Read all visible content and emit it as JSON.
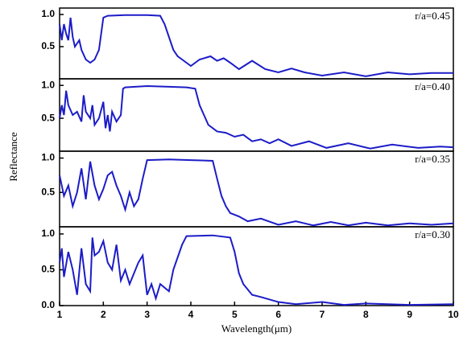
{
  "chart_data": [
    {
      "type": "line",
      "annotation": "r/a=0.45",
      "ylabel": "Reflectance",
      "xlim": [
        1,
        10
      ],
      "ylim": [
        0,
        1.1
      ],
      "yticks": [
        {
          "value": 0.5,
          "label": "0.5"
        },
        {
          "value": 1,
          "label": "1.0"
        }
      ],
      "x": [
        1,
        1.05,
        1.1,
        1.15,
        1.2,
        1.25,
        1.3,
        1.35,
        1.4,
        1.45,
        1.5,
        1.6,
        1.7,
        1.8,
        1.9,
        2.0,
        2.1,
        2.5,
        3.0,
        3.3,
        3.4,
        3.5,
        3.6,
        3.7,
        3.8,
        3.9,
        4.0,
        4.1,
        4.2,
        4.3,
        4.45,
        4.6,
        4.75,
        4.9,
        5.1,
        5.4,
        5.7,
        6.0,
        6.3,
        6.6,
        7.0,
        7.5,
        8.0,
        8.5,
        9.0,
        9.5,
        10
      ],
      "series": [
        {
          "color": "#1c1cc8",
          "values": [
            0.85,
            0.6,
            0.85,
            0.7,
            0.6,
            0.95,
            0.65,
            0.5,
            0.55,
            0.6,
            0.45,
            0.3,
            0.25,
            0.3,
            0.45,
            0.95,
            0.98,
            0.99,
            0.99,
            0.98,
            0.85,
            0.65,
            0.45,
            0.35,
            0.3,
            0.25,
            0.2,
            0.25,
            0.3,
            0.32,
            0.35,
            0.28,
            0.32,
            0.25,
            0.15,
            0.28,
            0.15,
            0.1,
            0.16,
            0.1,
            0.05,
            0.1,
            0.04,
            0.1,
            0.07,
            0.09,
            0.09
          ]
        }
      ]
    },
    {
      "type": "line",
      "annotation": "r/a=0.40",
      "xlim": [
        1,
        10
      ],
      "ylim": [
        0,
        1.1
      ],
      "yticks": [
        {
          "value": 0.5,
          "label": "0.5"
        },
        {
          "value": 1,
          "label": "1.0"
        }
      ],
      "x": [
        1,
        1.05,
        1.1,
        1.15,
        1.2,
        1.3,
        1.4,
        1.5,
        1.55,
        1.6,
        1.7,
        1.75,
        1.8,
        1.9,
        2.0,
        2.05,
        2.1,
        2.15,
        2.2,
        2.3,
        2.4,
        2.45,
        2.5,
        3.0,
        3.5,
        3.9,
        4.1,
        4.2,
        4.3,
        4.4,
        4.6,
        4.8,
        5.0,
        5.2,
        5.4,
        5.6,
        5.8,
        6.0,
        6.3,
        6.7,
        7.1,
        7.6,
        8.1,
        8.6,
        9.2,
        9.7,
        10
      ],
      "series": [
        {
          "color": "#1c1cc8",
          "values": [
            0.5,
            0.7,
            0.55,
            0.92,
            0.7,
            0.55,
            0.6,
            0.45,
            0.85,
            0.6,
            0.5,
            0.7,
            0.4,
            0.5,
            0.75,
            0.35,
            0.55,
            0.3,
            0.6,
            0.45,
            0.55,
            0.95,
            0.97,
            0.99,
            0.98,
            0.97,
            0.95,
            0.7,
            0.55,
            0.4,
            0.3,
            0.28,
            0.22,
            0.25,
            0.15,
            0.18,
            0.12,
            0.18,
            0.08,
            0.15,
            0.05,
            0.12,
            0.04,
            0.1,
            0.05,
            0.07,
            0.06
          ]
        }
      ]
    },
    {
      "type": "line",
      "annotation": "r/a=0.35",
      "xlim": [
        1,
        10
      ],
      "ylim": [
        0,
        1.1
      ],
      "yticks": [
        {
          "value": 0.5,
          "label": "0.5"
        },
        {
          "value": 1,
          "label": "1.0"
        }
      ],
      "x": [
        1,
        1.1,
        1.2,
        1.3,
        1.4,
        1.5,
        1.6,
        1.7,
        1.8,
        1.9,
        2.0,
        2.1,
        2.2,
        2.3,
        2.4,
        2.5,
        2.6,
        2.7,
        2.8,
        2.9,
        3.0,
        3.5,
        4.0,
        4.5,
        4.6,
        4.7,
        4.8,
        4.9,
        5.1,
        5.3,
        5.6,
        6.0,
        6.4,
        6.8,
        7.2,
        7.6,
        8.0,
        8.5,
        9.0,
        9.5,
        10
      ],
      "series": [
        {
          "color": "#1c1cc8",
          "values": [
            0.75,
            0.45,
            0.6,
            0.3,
            0.5,
            0.85,
            0.4,
            0.95,
            0.6,
            0.4,
            0.55,
            0.75,
            0.8,
            0.6,
            0.45,
            0.25,
            0.5,
            0.3,
            0.4,
            0.7,
            0.97,
            0.98,
            0.97,
            0.96,
            0.7,
            0.45,
            0.3,
            0.2,
            0.15,
            0.08,
            0.12,
            0.03,
            0.08,
            0.02,
            0.07,
            0.02,
            0.06,
            0.02,
            0.05,
            0.03,
            0.05
          ]
        }
      ]
    },
    {
      "type": "line",
      "annotation": "r/a=0.30",
      "xlabel": "Wavelength(μm)",
      "xlim": [
        1,
        10
      ],
      "ylim": [
        0,
        1.1
      ],
      "xticks": [
        1,
        2,
        3,
        4,
        5,
        6,
        7,
        8,
        9,
        10
      ],
      "yticks": [
        {
          "value": 0,
          "label": "0.0"
        },
        {
          "value": 0.5,
          "label": "0.5"
        },
        {
          "value": 1,
          "label": "1.0"
        }
      ],
      "x": [
        1,
        1.05,
        1.1,
        1.2,
        1.3,
        1.4,
        1.5,
        1.6,
        1.7,
        1.75,
        1.8,
        1.9,
        2.0,
        2.1,
        2.2,
        2.3,
        2.4,
        2.5,
        2.6,
        2.8,
        2.9,
        3.0,
        3.1,
        3.2,
        3.3,
        3.5,
        3.6,
        3.8,
        3.9,
        4.5,
        4.9,
        5.0,
        5.1,
        5.2,
        5.4,
        5.6,
        6.0,
        6.4,
        7.0,
        7.5,
        8.0,
        9.0,
        10
      ],
      "series": [
        {
          "color": "#1c1cc8",
          "values": [
            0.6,
            0.8,
            0.4,
            0.75,
            0.5,
            0.15,
            0.8,
            0.3,
            0.2,
            0.95,
            0.7,
            0.75,
            0.9,
            0.6,
            0.5,
            0.85,
            0.35,
            0.5,
            0.3,
            0.6,
            0.7,
            0.15,
            0.3,
            0.1,
            0.3,
            0.2,
            0.5,
            0.85,
            0.97,
            0.98,
            0.95,
            0.75,
            0.45,
            0.3,
            0.15,
            0.12,
            0.05,
            0.02,
            0.05,
            0.01,
            0.03,
            0.01,
            0.02
          ]
        }
      ]
    }
  ]
}
